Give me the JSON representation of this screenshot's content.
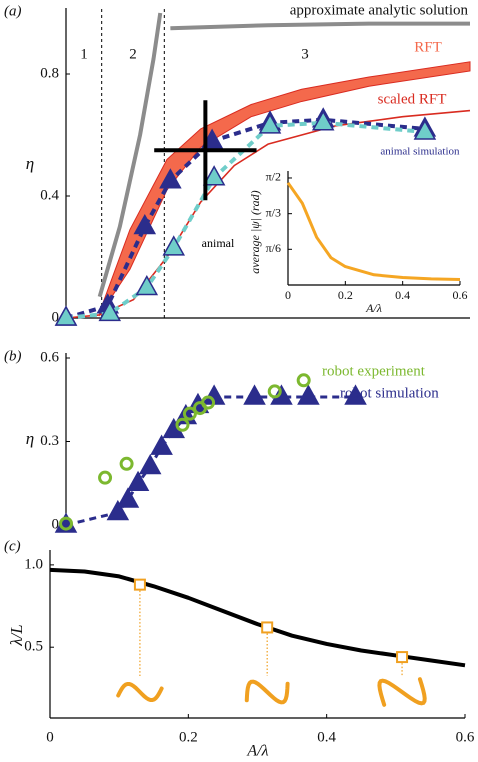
{
  "chart_data": [
    {
      "type": "line",
      "panel_label": "(a)",
      "ylabel": "η",
      "xlim": [
        0,
        0.6
      ],
      "ylim": [
        0,
        1
      ],
      "yticks": [
        0,
        0.4,
        0.8
      ],
      "region_boundaries": [
        0.053,
        0.146
      ],
      "region_labels": [
        "1",
        "2",
        "3"
      ],
      "series": [
        {
          "kind": "line",
          "color": "#8c8c8c",
          "width": 4,
          "x": [
            0.05,
            0.08,
            0.11,
            0.13,
            0.14
          ],
          "values": [
            0.07,
            0.3,
            0.6,
            0.85,
            1.0
          ]
        },
        {
          "kind": "line",
          "name": "approximate analytic solution",
          "color": "#8c8c8c",
          "width": 4,
          "x": [
            0.155,
            0.3,
            0.45,
            0.6
          ],
          "values": [
            0.95,
            0.96,
            0.965,
            0.965
          ]
        },
        {
          "kind": "band",
          "name": "RFT",
          "color": "#f4694c",
          "x": [
            0.05,
            0.095,
            0.15,
            0.2,
            0.275,
            0.35,
            0.45,
            0.6
          ],
          "low": [
            0.01,
            0.16,
            0.42,
            0.56,
            0.66,
            0.71,
            0.76,
            0.81
          ],
          "high": [
            0.02,
            0.29,
            0.52,
            0.62,
            0.7,
            0.75,
            0.79,
            0.84
          ]
        },
        {
          "kind": "line",
          "name": "scaled RFT",
          "color": "#d92b20",
          "width": 1.6,
          "x": [
            0,
            0.05,
            0.1,
            0.15,
            0.2,
            0.25,
            0.3,
            0.4,
            0.5,
            0.6
          ],
          "values": [
            0,
            0.01,
            0.06,
            0.2,
            0.38,
            0.5,
            0.57,
            0.63,
            0.66,
            0.68
          ]
        },
        {
          "kind": "line",
          "name": "animal simulation",
          "color": "#2b2d8c",
          "width": 4,
          "dash": true,
          "marker": "triangle",
          "x": [
            0,
            0.062,
            0.117,
            0.155,
            0.217,
            0.303,
            0.382,
            0.533
          ],
          "values": [
            0,
            0.04,
            0.3,
            0.45,
            0.58,
            0.64,
            0.65,
            0.62
          ]
        },
        {
          "kind": "line",
          "color": "#6fcdc9",
          "edgecolor": "#2b2d8c",
          "width": 4,
          "dash": true,
          "marker": "triangle",
          "x": [
            0,
            0.065,
            0.12,
            0.16,
            0.22,
            0.303,
            0.382,
            0.533
          ],
          "values": [
            0,
            0.015,
            0.1,
            0.23,
            0.46,
            0.63,
            0.64,
            0.61
          ]
        },
        {
          "kind": "errorbar",
          "name": "animal",
          "color": "#000000",
          "x": [
            0.207
          ],
          "values": [
            0.55
          ],
          "xerr": [
            0.076
          ],
          "yerr": [
            0.164
          ]
        }
      ]
    },
    {
      "type": "line",
      "xlabel": "A/λ",
      "ylabel": "average |ψ| (rad)",
      "xlim": [
        0,
        0.6
      ],
      "ylim": [
        0,
        1.6
      ],
      "xticks": [
        0,
        0.2,
        0.4,
        0.6
      ],
      "yticks": [
        {
          "value": 0.524,
          "label": "π/6"
        },
        {
          "value": 1.047,
          "label": "π/3"
        },
        {
          "value": 1.571,
          "label": "π/2"
        }
      ],
      "series": [
        {
          "kind": "line",
          "color": "#f5a623",
          "width": 3,
          "x": [
            0,
            0.05,
            0.1,
            0.15,
            0.2,
            0.3,
            0.4,
            0.5,
            0.6
          ],
          "values": [
            1.5,
            1.2,
            0.7,
            0.4,
            0.27,
            0.15,
            0.11,
            0.09,
            0.08
          ]
        }
      ]
    },
    {
      "type": "line",
      "panel_label": "(b)",
      "ylabel": "η",
      "xlim": [
        0,
        0.6
      ],
      "ylim": [
        0,
        0.6
      ],
      "yticks": [
        0,
        0.3,
        0.6
      ],
      "series": [
        {
          "kind": "line",
          "name": "robot simulation",
          "color": "#2b2d8c",
          "width": 3,
          "dash": true,
          "marker": "triangle",
          "x": [
            0,
            0.077,
            0.092,
            0.107,
            0.125,
            0.142,
            0.16,
            0.178,
            0.196,
            0.22,
            0.28,
            0.32,
            0.36,
            0.43
          ],
          "values": [
            0,
            0.045,
            0.09,
            0.15,
            0.21,
            0.28,
            0.34,
            0.39,
            0.43,
            0.46,
            0.46,
            0.46,
            0.46,
            0.46
          ]
        },
        {
          "kind": "markers",
          "name": "robot experiment",
          "color": "#7cb82f",
          "marker": "circle",
          "x": [
            0,
            0.058,
            0.09,
            0.173,
            0.184,
            0.199,
            0.211,
            0.31,
            0.353
          ],
          "values": [
            0.005,
            0.17,
            0.22,
            0.36,
            0.4,
            0.42,
            0.44,
            0.48,
            0.52
          ]
        }
      ]
    },
    {
      "type": "line",
      "panel_label": "(c)",
      "xlabel": "A/λ",
      "ylabel": "λ/L",
      "xlim": [
        0,
        0.6
      ],
      "ylim": [
        0.07,
        1.06
      ],
      "xticks": [
        0,
        0.2,
        0.4,
        0.6
      ],
      "yticks": [
        {
          "value": 1,
          "label": "1.0"
        },
        0.5
      ],
      "series": [
        {
          "kind": "line",
          "color": "#000000",
          "width": 4,
          "x": [
            0,
            0.05,
            0.1,
            0.15,
            0.2,
            0.25,
            0.3,
            0.35,
            0.4,
            0.45,
            0.5,
            0.55,
            0.6
          ],
          "values": [
            0.97,
            0.96,
            0.93,
            0.87,
            0.8,
            0.72,
            0.64,
            0.57,
            0.52,
            0.48,
            0.45,
            0.42,
            0.39
          ]
        },
        {
          "kind": "markers",
          "color": "#f0a020",
          "marker": "square",
          "x": [
            0.13,
            0.314,
            0.509
          ],
          "values": [
            0.88,
            0.62,
            0.44
          ]
        }
      ]
    }
  ]
}
